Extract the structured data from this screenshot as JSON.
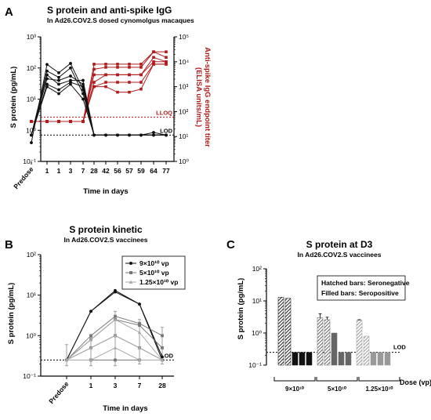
{
  "colors": {
    "black": "#111111",
    "red": "#b01c1c",
    "gray1": "#444444",
    "gray2": "#777777",
    "gray3": "#a8a8a8"
  },
  "chart_data": [
    {
      "panel": "A",
      "type": "line",
      "title": "S protein and anti-spike IgG",
      "subtitle": "In Ad26.COV2.S dosed cynomolgus macaques",
      "xlabel": "Time in days",
      "ylabel": "S protein (pg/mL)",
      "y2label_line1": "Anti-spike IgG endpoint titer",
      "y2label_line2": "(ELISA units/mL)",
      "categories": [
        "Predose",
        "1",
        "1",
        "3",
        "7",
        "28",
        "42",
        "56",
        "57",
        "59",
        "64",
        "77"
      ],
      "y_scale": "log",
      "ylim": [
        0.1,
        1000
      ],
      "y_ticks": [
        "10⁻¹",
        "10⁰",
        "10¹",
        "10²",
        "10³"
      ],
      "y2_scale": "log",
      "y2lim": [
        1,
        100000
      ],
      "y2_ticks": [
        "10⁰",
        "10¹",
        "10²",
        "10³",
        "10⁴",
        "10⁵"
      ],
      "lloq": {
        "label": "LLOQ",
        "y2": 60
      },
      "lod": {
        "label": "LOD",
        "y": 0.7
      },
      "series_s_protein": [
        {
          "values": [
            0.4,
            130,
            70,
            140,
            20,
            0.7,
            0.7,
            0.7,
            0.7,
            0.7,
            0.85,
            0.7
          ]
        },
        {
          "values": [
            0.7,
            80,
            50,
            100,
            15,
            0.7,
            0.7,
            0.7,
            0.7,
            0.7,
            0.7,
            0.7
          ]
        },
        {
          "values": [
            0.7,
            60,
            30,
            40,
            40,
            0.7,
            0.7,
            0.7,
            0.7,
            0.7,
            0.7,
            0.7
          ]
        },
        {
          "values": [
            0.7,
            45,
            40,
            55,
            30,
            0.7,
            0.7,
            0.7,
            0.7,
            0.7,
            0.7,
            0.7
          ]
        },
        {
          "values": [
            0.7,
            30,
            20,
            35,
            25,
            0.7,
            0.7,
            0.7,
            0.7,
            0.7,
            0.7,
            0.7
          ]
        },
        {
          "values": [
            0.7,
            25,
            15,
            30,
            10,
            0.7,
            0.7,
            0.7,
            0.7,
            0.7,
            0.7,
            0.7
          ]
        }
      ],
      "series_igg": [
        {
          "values": [
            40,
            40,
            40,
            40,
            40,
            8000,
            8000,
            8000,
            8000,
            8000,
            25000,
            25000
          ]
        },
        {
          "values": [
            40,
            40,
            40,
            40,
            40,
            5000,
            6000,
            6000,
            6000,
            6000,
            25000,
            15000
          ]
        },
        {
          "values": [
            40,
            40,
            40,
            40,
            40,
            3000,
            3000,
            3000,
            3000,
            3000,
            15000,
            10000
          ]
        },
        {
          "values": [
            40,
            40,
            40,
            40,
            40,
            1500,
            3000,
            3000,
            3000,
            3000,
            10000,
            10000
          ]
        },
        {
          "values": [
            40,
            40,
            40,
            40,
            40,
            1000,
            1500,
            1500,
            1500,
            1500,
            8000,
            8000
          ]
        },
        {
          "values": [
            40,
            40,
            40,
            40,
            40,
            1000,
            1000,
            600,
            600,
            800,
            8000,
            8000
          ]
        }
      ]
    },
    {
      "panel": "B",
      "type": "line",
      "title": "S protein kinetic",
      "subtitle": "In Ad26.COV2.S vaccinees",
      "xlabel": "Time in days",
      "ylabel": "S protein (pg/mL)",
      "categories": [
        "Predose",
        "1",
        "3",
        "7",
        "28"
      ],
      "y_scale": "log",
      "ylim": [
        0.1,
        100
      ],
      "y_ticks": [
        "10⁻¹",
        "10⁰",
        "10¹",
        "10²"
      ],
      "lod": {
        "label": "LOD",
        "y": 0.25
      },
      "legend_position": "top-right",
      "legend": [
        "9×10¹⁰ vp",
        "5×10¹⁰ vp",
        "1.25×10¹⁰ vp"
      ],
      "series": [
        {
          "group": 0,
          "values": [
            0.25,
            4.0,
            13.0,
            6.0,
            0.3
          ]
        },
        {
          "group": 0,
          "values": [
            0.25,
            4.0,
            12.0,
            6.0,
            0.25
          ]
        },
        {
          "group": 1,
          "values": [
            0.25,
            1.0,
            3.0,
            2.0,
            1.0
          ]
        },
        {
          "group": 1,
          "values": [
            0.25,
            0.8,
            2.5,
            1.8,
            0.5
          ]
        },
        {
          "group": 1,
          "values": [
            0.25,
            0.5,
            1.0,
            0.5,
            0.25
          ]
        },
        {
          "group": 1,
          "values": [
            0.25,
            0.25,
            0.25,
            0.25,
            0.25
          ]
        },
        {
          "group": 2,
          "values": [
            0.25,
            0.8,
            2.5,
            1.2,
            0.25
          ]
        },
        {
          "group": 2,
          "values": [
            0.25,
            0.5,
            1.0,
            0.5,
            0.25
          ]
        },
        {
          "group": 2,
          "values": [
            0.25,
            0.25,
            0.5,
            0.25,
            0.25
          ]
        }
      ],
      "error_bars": [
        {
          "x": 0,
          "lo": 0.18,
          "hi": 0.6
        },
        {
          "x": 1,
          "lo": 0.18,
          "hi": 0.9
        },
        {
          "x": 2,
          "lo": 0.18,
          "hi": 4.0
        },
        {
          "x": 3,
          "lo": 0.2,
          "hi": 2.5
        },
        {
          "x": 4,
          "lo": 0.2,
          "hi": 1.6
        }
      ]
    },
    {
      "panel": "C",
      "type": "bar",
      "title": "S protein at D3",
      "subtitle": "In Ad26.COV2.S vaccinees",
      "ylabel": "S protein (pg/mL)",
      "xlabel": "Dose (vp)",
      "y_scale": "log",
      "ylim": [
        0.1,
        100
      ],
      "y_ticks": [
        "10⁻¹",
        "10⁰",
        "10¹",
        "10²"
      ],
      "lod": {
        "label": "LOD",
        "y": 0.25
      },
      "legend_line1": "Hatched bars: Seronegative",
      "legend_line2": "Filled bars: Seropositive",
      "groups": [
        "9×10¹⁰",
        "5×10¹⁰",
        "1.25×10¹⁰"
      ],
      "bars": [
        {
          "group": 0,
          "hatched": true,
          "value": 13.0,
          "err": 0
        },
        {
          "group": 0,
          "hatched": true,
          "value": 12.0,
          "err": 0
        },
        {
          "group": 0,
          "hatched": false,
          "value": 0.25,
          "err": 0
        },
        {
          "group": 0,
          "hatched": false,
          "value": 0.25,
          "err": 0
        },
        {
          "group": 0,
          "hatched": false,
          "value": 0.25,
          "err": 0
        },
        {
          "group": 1,
          "hatched": true,
          "value": 3.0,
          "err": 1.0
        },
        {
          "group": 1,
          "hatched": true,
          "value": 2.6,
          "err": 0.5
        },
        {
          "group": 1,
          "hatched": false,
          "value": 1.0,
          "err": 0
        },
        {
          "group": 1,
          "hatched": false,
          "value": 0.25,
          "err": 0
        },
        {
          "group": 1,
          "hatched": false,
          "value": 0.25,
          "err": 0
        },
        {
          "group": 2,
          "hatched": true,
          "value": 2.5,
          "err": 0.1
        },
        {
          "group": 2,
          "hatched": true,
          "value": 0.8,
          "err": 0
        },
        {
          "group": 2,
          "hatched": false,
          "value": 0.25,
          "err": 0
        },
        {
          "group": 2,
          "hatched": false,
          "value": 0.25,
          "err": 0
        },
        {
          "group": 2,
          "hatched": false,
          "value": 0.25,
          "err": 0
        }
      ]
    }
  ],
  "panel_letters": [
    "A",
    "B",
    "C"
  ]
}
